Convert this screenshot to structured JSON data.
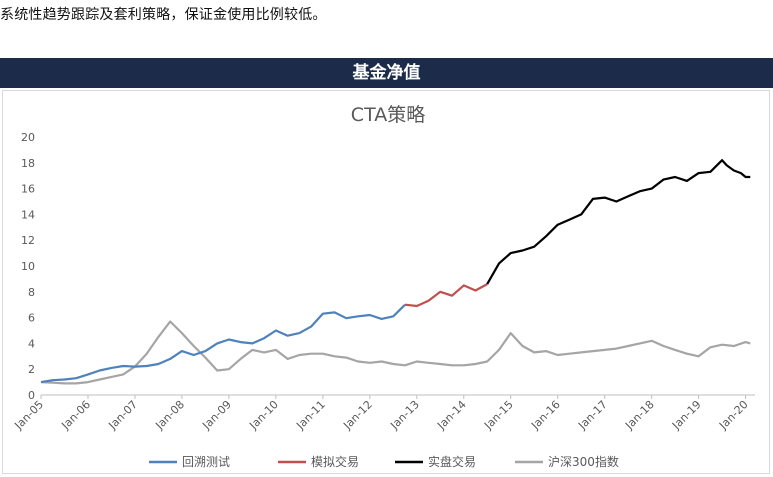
{
  "page": {
    "intro_text": "系统性趋势跟踪及套利策略，保证金使用比例较低。",
    "banner_title": "基金净值"
  },
  "chart_data": {
    "type": "line",
    "title": "CTA策略",
    "xlabel": "",
    "ylabel": "",
    "ylim": [
      0,
      20
    ],
    "y_ticks": [
      0,
      2,
      4,
      6,
      8,
      10,
      12,
      14,
      16,
      18,
      20
    ],
    "xlim": [
      2005.0,
      2020.2
    ],
    "x_ticks": [
      2005,
      2006,
      2007,
      2008,
      2009,
      2010,
      2011,
      2012,
      2013,
      2014,
      2015,
      2016,
      2017,
      2018,
      2019,
      2020
    ],
    "x_tick_labels": [
      "Jan-05",
      "Jan-06",
      "Jan-07",
      "Jan-08",
      "Jan-09",
      "Jan-10",
      "Jan-11",
      "Jan-12",
      "Jan-13",
      "Jan-14",
      "Jan-15",
      "Jan-16",
      "Jan-17",
      "Jan-18",
      "Jan-19",
      "Jan-20"
    ],
    "grid": false,
    "legend": "bottom",
    "series": [
      {
        "name": "回溯测试",
        "color": "#4f81bd",
        "x": [
          2005.0,
          2005.25,
          2005.5,
          2005.75,
          2006.0,
          2006.25,
          2006.5,
          2006.75,
          2007.0,
          2007.25,
          2007.5,
          2007.75,
          2008.0,
          2008.25,
          2008.5,
          2008.75,
          2009.0,
          2009.25,
          2009.5,
          2009.75,
          2010.0,
          2010.25,
          2010.5,
          2010.75,
          2011.0,
          2011.25,
          2011.5,
          2011.75,
          2012.0,
          2012.25,
          2012.5,
          2012.75
        ],
        "y": [
          1.0,
          1.15,
          1.2,
          1.3,
          1.6,
          1.9,
          2.1,
          2.25,
          2.2,
          2.25,
          2.4,
          2.8,
          3.4,
          3.1,
          3.4,
          4.0,
          4.3,
          4.1,
          4.0,
          4.4,
          5.0,
          4.6,
          4.8,
          5.3,
          6.3,
          6.4,
          5.95,
          6.1,
          6.2,
          5.9,
          6.1,
          7.0
        ]
      },
      {
        "name": "模拟交易",
        "color": "#c0504d",
        "x": [
          2012.75,
          2013.0,
          2013.25,
          2013.5,
          2013.75,
          2014.0,
          2014.25,
          2014.5
        ],
        "y": [
          7.0,
          6.9,
          7.3,
          8.0,
          7.7,
          8.5,
          8.1,
          8.6
        ]
      },
      {
        "name": "实盘交易",
        "color": "#000000",
        "x": [
          2014.5,
          2014.75,
          2015.0,
          2015.25,
          2015.5,
          2015.75,
          2016.0,
          2016.25,
          2016.5,
          2016.75,
          2017.0,
          2017.25,
          2017.5,
          2017.75,
          2018.0,
          2018.25,
          2018.5,
          2018.75,
          2019.0,
          2019.25,
          2019.5,
          2019.6,
          2019.75,
          2019.9,
          2020.0,
          2020.1
        ],
        "y": [
          8.6,
          10.2,
          11.0,
          11.2,
          11.5,
          12.3,
          13.2,
          13.6,
          14.0,
          15.2,
          15.3,
          15.0,
          15.4,
          15.8,
          16.0,
          16.7,
          16.9,
          16.6,
          17.2,
          17.3,
          18.2,
          17.8,
          17.4,
          17.2,
          16.9,
          16.9
        ]
      },
      {
        "name": "沪深300指数",
        "color": "#a5a5a5",
        "x": [
          2005.0,
          2005.25,
          2005.5,
          2005.75,
          2006.0,
          2006.25,
          2006.5,
          2006.75,
          2007.0,
          2007.25,
          2007.5,
          2007.75,
          2008.0,
          2008.25,
          2008.5,
          2008.75,
          2009.0,
          2009.25,
          2009.5,
          2009.75,
          2010.0,
          2010.25,
          2010.5,
          2010.75,
          2011.0,
          2011.25,
          2011.5,
          2011.75,
          2012.0,
          2012.25,
          2012.5,
          2012.75,
          2013.0,
          2013.25,
          2013.5,
          2013.75,
          2014.0,
          2014.25,
          2014.5,
          2014.75,
          2015.0,
          2015.25,
          2015.5,
          2015.75,
          2016.0,
          2016.25,
          2016.5,
          2016.75,
          2017.0,
          2017.25,
          2017.5,
          2017.75,
          2018.0,
          2018.25,
          2018.5,
          2018.75,
          2019.0,
          2019.25,
          2019.5,
          2019.75,
          2020.0,
          2020.1
        ],
        "y": [
          1.0,
          0.95,
          0.9,
          0.9,
          1.0,
          1.2,
          1.4,
          1.6,
          2.2,
          3.2,
          4.5,
          5.7,
          4.8,
          3.8,
          2.9,
          1.9,
          2.0,
          2.8,
          3.5,
          3.3,
          3.5,
          2.8,
          3.1,
          3.2,
          3.2,
          3.0,
          2.9,
          2.6,
          2.5,
          2.6,
          2.4,
          2.3,
          2.6,
          2.5,
          2.4,
          2.3,
          2.3,
          2.4,
          2.6,
          3.5,
          4.8,
          3.8,
          3.3,
          3.4,
          3.1,
          3.2,
          3.3,
          3.4,
          3.5,
          3.6,
          3.8,
          4.0,
          4.2,
          3.8,
          3.5,
          3.2,
          3.0,
          3.7,
          3.9,
          3.8,
          4.1,
          4.0
        ]
      }
    ]
  }
}
